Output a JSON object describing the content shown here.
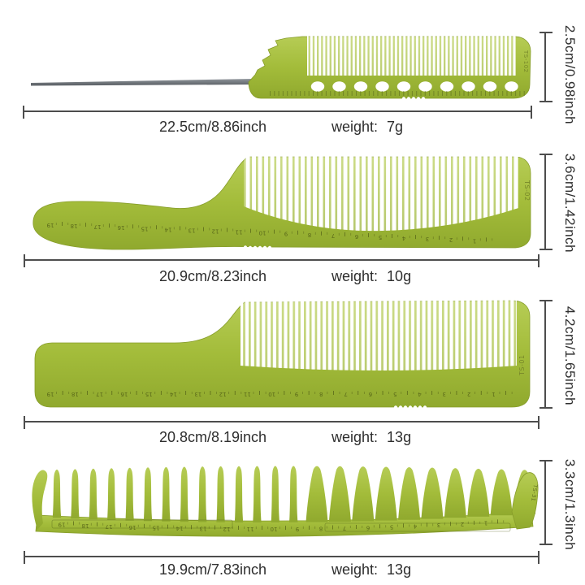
{
  "colors": {
    "background": "#ffffff",
    "comb_green": "#a3bc3a",
    "comb_green_light": "#b6cc55",
    "comb_green_dark": "#90a92e",
    "comb_marking": "#77882a",
    "metal_pin_light": "#8f959b",
    "metal_pin_dark": "#585d62",
    "dimension_line": "#4d4d4d",
    "label_text": "#2e2e2e"
  },
  "combs": [
    {
      "name": "pin-tail-comb",
      "model": "TS-102",
      "height_label": "2.5cm/0.98inch",
      "length_label": "22.5cm/8.86inch",
      "weight_prefix": "weight:",
      "weight_value": "7g",
      "spine_holes": 10
    },
    {
      "name": "handle-styling-comb",
      "model": "TS-02",
      "height_label": "3.6cm/1.42inch",
      "length_label": "20.9cm/8.23inch",
      "weight_prefix": "weight:",
      "weight_value": "10g",
      "ruler_numbers": [
        19,
        18,
        17,
        16,
        15,
        14,
        13,
        12,
        11,
        10,
        9,
        8,
        7,
        6,
        5,
        4,
        3,
        2,
        1
      ]
    },
    {
      "name": "flat-handle-clipper-comb",
      "model": "TS-01",
      "height_label": "4.2cm/1.65inch",
      "length_label": "20.8cm/8.19inch",
      "weight_prefix": "weight:",
      "weight_value": "13g",
      "ruler_numbers": [
        19,
        18,
        17,
        16,
        15,
        14,
        13,
        12,
        11,
        10,
        9,
        8,
        7,
        6,
        5,
        4,
        3,
        2,
        1
      ]
    },
    {
      "name": "wide-tooth-comb",
      "model": "TS-31",
      "height_label": "3.3cm/1.3inch",
      "length_label": "19.9cm/7.83inch",
      "weight_prefix": "weight:",
      "weight_value": "13g",
      "ruler_numbers": [
        19,
        18,
        17,
        16,
        15,
        14,
        13,
        12,
        11,
        10,
        9,
        8,
        7,
        6,
        5,
        4,
        3,
        2,
        1
      ],
      "narrow_teeth": 14,
      "wide_teeth": 10
    }
  ]
}
